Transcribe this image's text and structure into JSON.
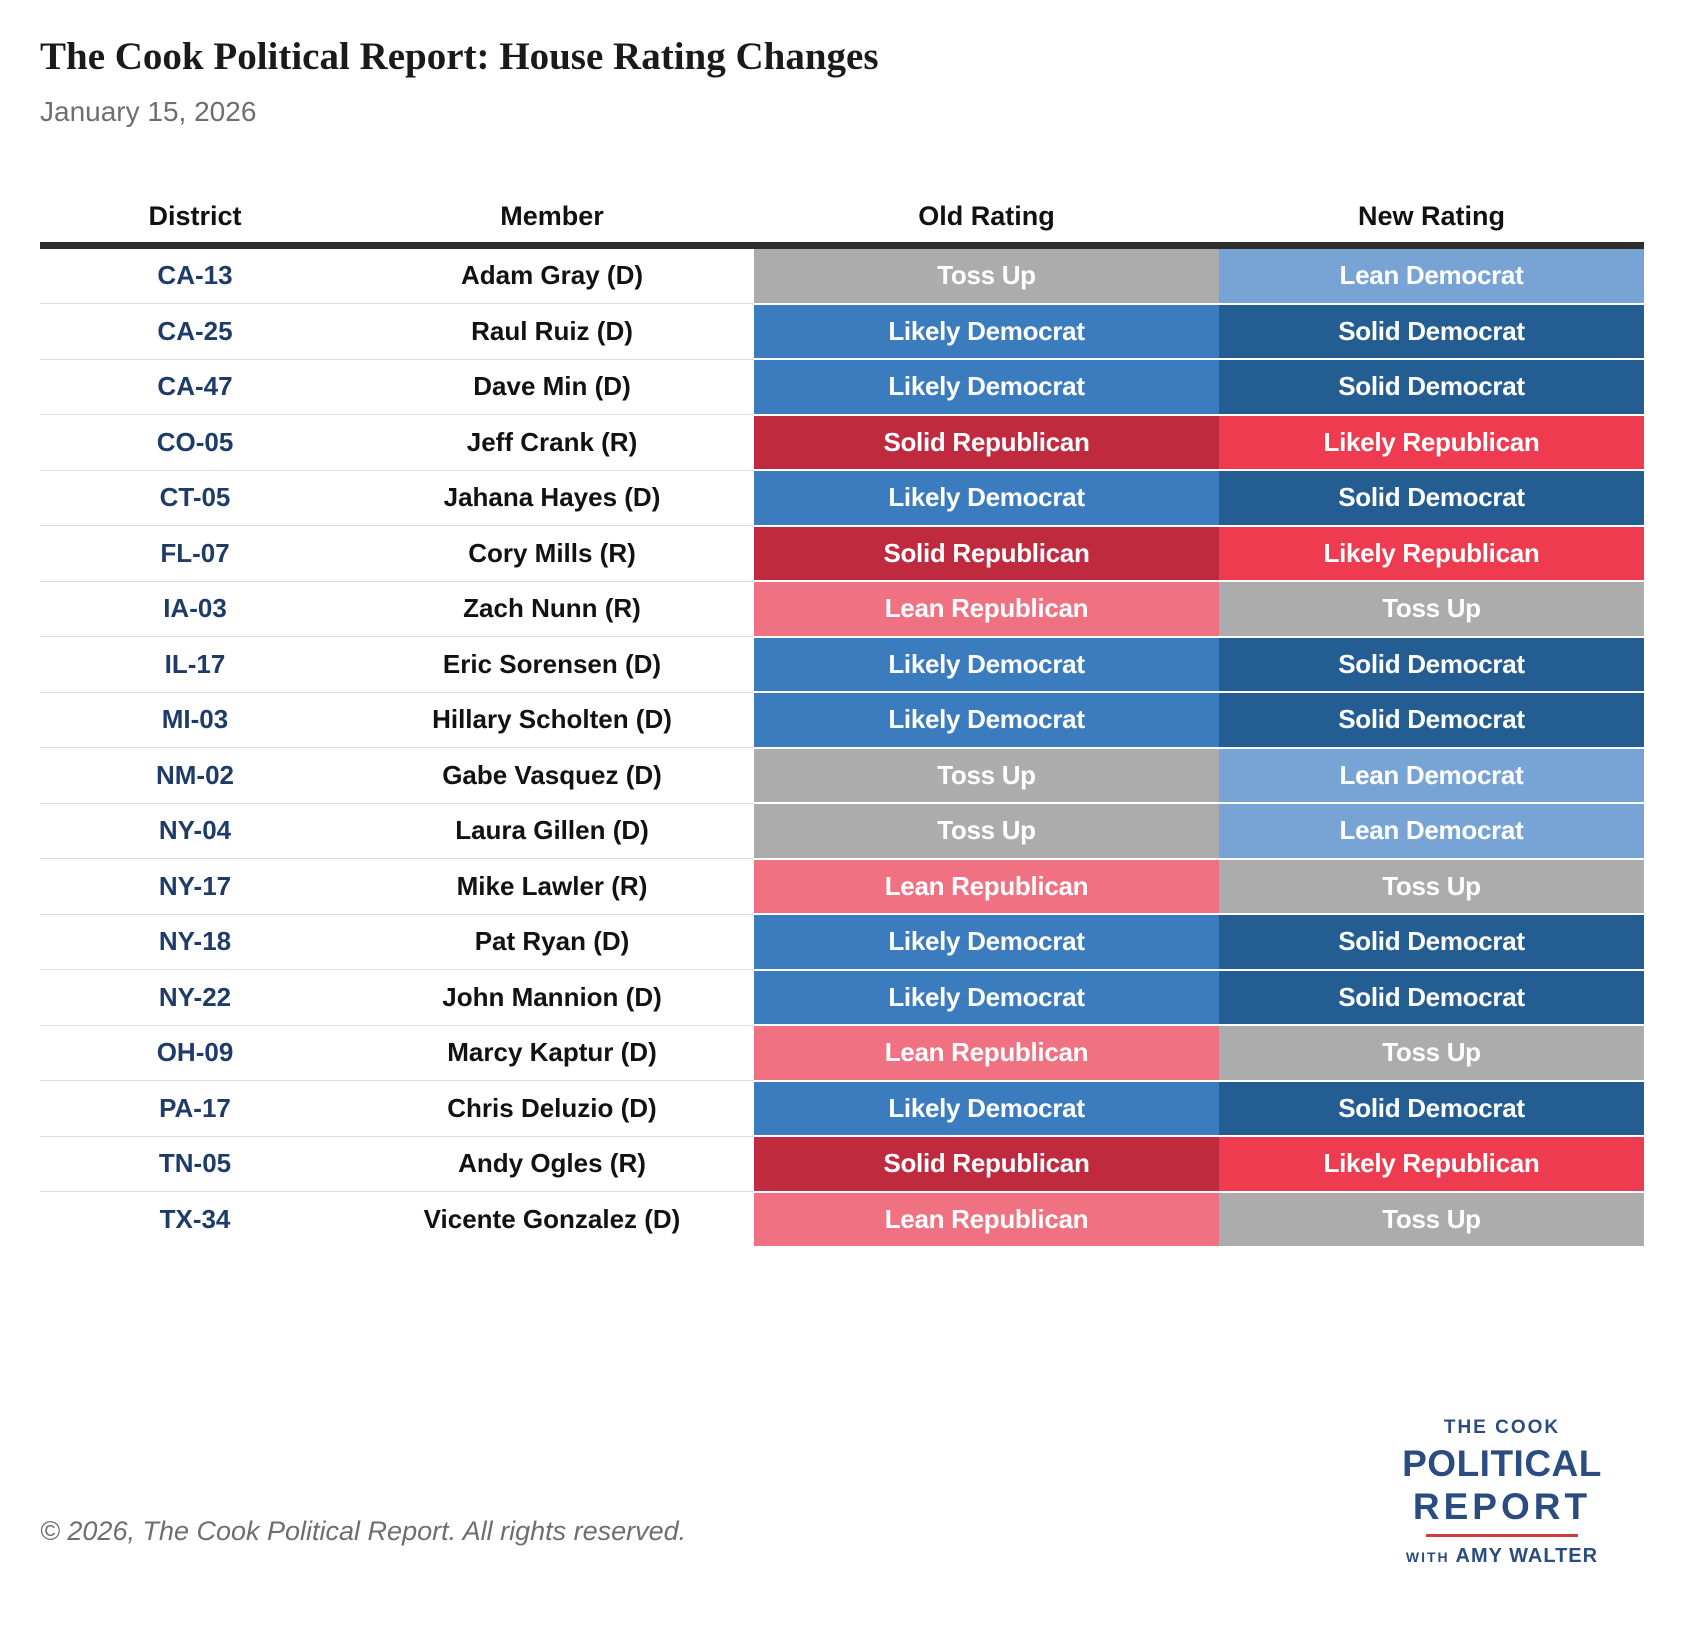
{
  "page": {
    "title": "The Cook Political Report: House Rating Changes",
    "date": "January 15, 2026",
    "copyright": "© 2026, The Cook Political Report. All rights reserved."
  },
  "chart_data": {
    "type": "table",
    "title": "The Cook Political Report: House Rating Changes",
    "subtitle": "January 15, 2026",
    "columns": [
      "District",
      "Member",
      "Old Rating",
      "New Rating"
    ],
    "rows": [
      [
        "CA-13",
        "Adam Gray (D)",
        "Toss Up",
        "Lean Democrat"
      ],
      [
        "CA-25",
        "Raul Ruiz (D)",
        "Likely Democrat",
        "Solid Democrat"
      ],
      [
        "CA-47",
        "Dave Min (D)",
        "Likely Democrat",
        "Solid Democrat"
      ],
      [
        "CO-05",
        "Jeff Crank (R)",
        "Solid Republican",
        "Likely Republican"
      ],
      [
        "CT-05",
        "Jahana Hayes (D)",
        "Likely Democrat",
        "Solid Democrat"
      ],
      [
        "FL-07",
        "Cory Mills (R)",
        "Solid Republican",
        "Likely Republican"
      ],
      [
        "IA-03",
        "Zach Nunn (R)",
        "Lean Republican",
        "Toss Up"
      ],
      [
        "IL-17",
        "Eric Sorensen (D)",
        "Likely Democrat",
        "Solid Democrat"
      ],
      [
        "MI-03",
        "Hillary Scholten (D)",
        "Likely Democrat",
        "Solid Democrat"
      ],
      [
        "NM-02",
        "Gabe Vasquez (D)",
        "Toss Up",
        "Lean Democrat"
      ],
      [
        "NY-04",
        "Laura Gillen (D)",
        "Toss Up",
        "Lean Democrat"
      ],
      [
        "NY-17",
        "Mike Lawler (R)",
        "Lean Republican",
        "Toss Up"
      ],
      [
        "NY-18",
        "Pat Ryan (D)",
        "Likely Democrat",
        "Solid Democrat"
      ],
      [
        "NY-22",
        "John Mannion (D)",
        "Likely Democrat",
        "Solid Democrat"
      ],
      [
        "OH-09",
        "Marcy Kaptur (D)",
        "Lean Republican",
        "Toss Up"
      ],
      [
        "PA-17",
        "Chris Deluzio (D)",
        "Likely Democrat",
        "Solid Democrat"
      ],
      [
        "TN-05",
        "Andy Ogles (R)",
        "Solid Republican",
        "Likely Republican"
      ],
      [
        "TX-34",
        "Vicente Gonzalez (D)",
        "Lean Republican",
        "Toss Up"
      ]
    ]
  },
  "rating_colors": {
    "Toss Up": "#acacac",
    "Lean Democrat": "#77a4d5",
    "Likely Democrat": "#3b7cbf",
    "Solid Democrat": "#245d92",
    "Lean Republican": "#f07181",
    "Likely Republican": "#ee3b4f",
    "Solid Republican": "#c02a3e"
  },
  "text_colors": {
    "district": "#1f3c68",
    "member": "#121212",
    "date": "#6e6e6e"
  },
  "logo": {
    "line1": "THE COOK",
    "line2": "POLITICAL",
    "line3": "REPORT",
    "with_label": "WITH",
    "author": "AMY WALTER",
    "navy": "#2b4c80",
    "red": "#d23b3e"
  }
}
